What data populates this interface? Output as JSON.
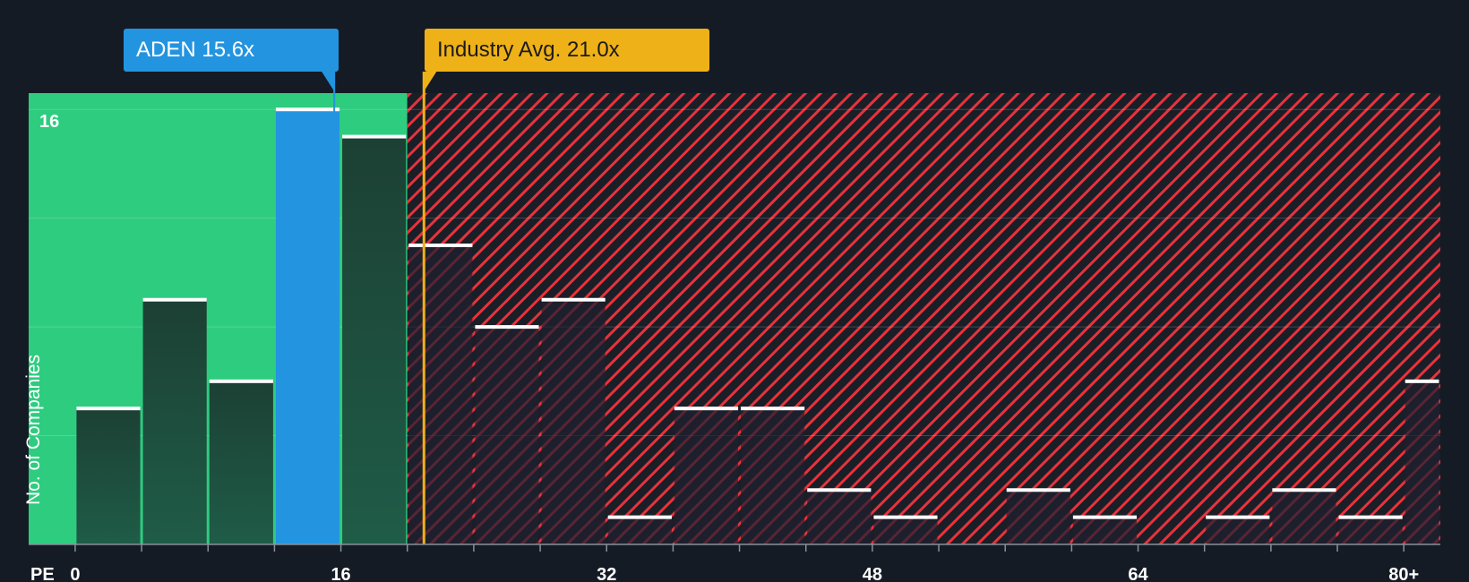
{
  "chart_data": {
    "type": "bar",
    "metric_label": "PE",
    "ylabel": "No. of Companies",
    "x_tick_labels": [
      "0",
      "16",
      "32",
      "48",
      "64",
      "80+"
    ],
    "x_tick_values": [
      0,
      16,
      32,
      48,
      64,
      80
    ],
    "x_range": [
      -2.8,
      82.2
    ],
    "y_range": [
      0,
      16.6
    ],
    "y_tick_values": [
      0,
      4,
      8,
      12,
      16
    ],
    "y_tick_labels_shown": [
      "16"
    ],
    "bin_width": 4,
    "bins": [
      {
        "x0": 0,
        "x1": 4,
        "count": 5
      },
      {
        "x0": 4,
        "x1": 8,
        "count": 9
      },
      {
        "x0": 8,
        "x1": 12,
        "count": 6
      },
      {
        "x0": 12,
        "x1": 16,
        "count": 16
      },
      {
        "x0": 16,
        "x1": 20,
        "count": 15
      },
      {
        "x0": 20,
        "x1": 24,
        "count": 11
      },
      {
        "x0": 24,
        "x1": 28,
        "count": 8
      },
      {
        "x0": 28,
        "x1": 32,
        "count": 9
      },
      {
        "x0": 32,
        "x1": 36,
        "count": 1
      },
      {
        "x0": 36,
        "x1": 40,
        "count": 5
      },
      {
        "x0": 40,
        "x1": 44,
        "count": 5
      },
      {
        "x0": 44,
        "x1": 48,
        "count": 2
      },
      {
        "x0": 48,
        "x1": 52,
        "count": 1
      },
      {
        "x0": 52,
        "x1": 56,
        "count": 0
      },
      {
        "x0": 56,
        "x1": 60,
        "count": 2
      },
      {
        "x0": 60,
        "x1": 64,
        "count": 1
      },
      {
        "x0": 64,
        "x1": 68,
        "count": 0
      },
      {
        "x0": 68,
        "x1": 72,
        "count": 1
      },
      {
        "x0": 72,
        "x1": 76,
        "count": 2
      },
      {
        "x0": 76,
        "x1": 80,
        "count": 1
      },
      {
        "x0": 80,
        "x1": 82.2,
        "count": 6
      }
    ],
    "company": {
      "label": "ADEN 15.6x",
      "value": 15.6,
      "color": "#2394e0"
    },
    "industry_avg": {
      "label": "Industry Avg. 21.0x",
      "value": 21.0,
      "color": "#efb118"
    },
    "colors": {
      "background": "#151b24",
      "fair_zone": "#2ecc7f",
      "overvalued_zone": "#e8323b",
      "bar_dark": "#1e4a3e",
      "bar_top": "#ffffff"
    }
  }
}
